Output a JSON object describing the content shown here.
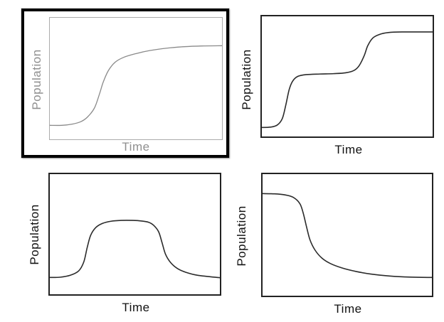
{
  "page": {
    "background": "#ffffff",
    "selected_frame_color": "#000000"
  },
  "chart_data": [
    {
      "id": "logistic-growth",
      "type": "line",
      "title": "",
      "xlabel": "Time",
      "ylabel": "Population",
      "selected": true,
      "grid": false,
      "ticks": false,
      "line_color": "#8a8a8a",
      "axis_color": "#ababab",
      "label_color": "#8f8f8f",
      "points": [
        [
          0,
          0.115
        ],
        [
          0.07,
          0.115
        ],
        [
          0.13,
          0.125
        ],
        [
          0.18,
          0.145
        ],
        [
          0.22,
          0.185
        ],
        [
          0.26,
          0.26
        ],
        [
          0.29,
          0.38
        ],
        [
          0.31,
          0.47
        ],
        [
          0.34,
          0.565
        ],
        [
          0.38,
          0.635
        ],
        [
          0.43,
          0.675
        ],
        [
          0.5,
          0.705
        ],
        [
          0.58,
          0.73
        ],
        [
          0.68,
          0.75
        ],
        [
          0.78,
          0.762
        ],
        [
          0.88,
          0.768
        ],
        [
          1,
          0.77
        ]
      ]
    },
    {
      "id": "stepwise-growth",
      "type": "line",
      "title": "",
      "xlabel": "Time",
      "ylabel": "Population",
      "selected": false,
      "grid": false,
      "ticks": false,
      "line_color": "#2b2b2b",
      "axis_color": "#222222",
      "label_color": "#111111",
      "points": [
        [
          0,
          0.075
        ],
        [
          0.05,
          0.078
        ],
        [
          0.09,
          0.095
        ],
        [
          0.12,
          0.15
        ],
        [
          0.14,
          0.26
        ],
        [
          0.16,
          0.39
        ],
        [
          0.18,
          0.46
        ],
        [
          0.21,
          0.5
        ],
        [
          0.26,
          0.515
        ],
        [
          0.34,
          0.52
        ],
        [
          0.42,
          0.523
        ],
        [
          0.49,
          0.53
        ],
        [
          0.54,
          0.55
        ],
        [
          0.57,
          0.59
        ],
        [
          0.6,
          0.675
        ],
        [
          0.62,
          0.755
        ],
        [
          0.65,
          0.82
        ],
        [
          0.69,
          0.85
        ],
        [
          0.74,
          0.865
        ],
        [
          0.82,
          0.87
        ],
        [
          1,
          0.87
        ]
      ]
    },
    {
      "id": "boom-and-bust",
      "type": "line",
      "title": "",
      "xlabel": "Time",
      "ylabel": "Population",
      "selected": false,
      "grid": false,
      "ticks": false,
      "line_color": "#2b2b2b",
      "axis_color": "#222222",
      "label_color": "#111111",
      "points": [
        [
          0,
          0.14
        ],
        [
          0.06,
          0.142
        ],
        [
          0.12,
          0.158
        ],
        [
          0.17,
          0.195
        ],
        [
          0.2,
          0.27
        ],
        [
          0.22,
          0.39
        ],
        [
          0.24,
          0.49
        ],
        [
          0.27,
          0.555
        ],
        [
          0.31,
          0.59
        ],
        [
          0.36,
          0.608
        ],
        [
          0.42,
          0.615
        ],
        [
          0.49,
          0.615
        ],
        [
          0.54,
          0.61
        ],
        [
          0.58,
          0.6
        ],
        [
          0.61,
          0.575
        ],
        [
          0.64,
          0.52
        ],
        [
          0.66,
          0.43
        ],
        [
          0.68,
          0.335
        ],
        [
          0.71,
          0.265
        ],
        [
          0.75,
          0.215
        ],
        [
          0.8,
          0.183
        ],
        [
          0.87,
          0.158
        ],
        [
          1,
          0.138
        ]
      ]
    },
    {
      "id": "population-decline",
      "type": "line",
      "title": "",
      "xlabel": "Time",
      "ylabel": "Population",
      "selected": false,
      "grid": false,
      "ticks": false,
      "line_color": "#2b2b2b",
      "axis_color": "#222222",
      "label_color": "#111111",
      "points": [
        [
          0,
          0.84
        ],
        [
          0.07,
          0.838
        ],
        [
          0.13,
          0.83
        ],
        [
          0.18,
          0.81
        ],
        [
          0.22,
          0.758
        ],
        [
          0.24,
          0.68
        ],
        [
          0.26,
          0.565
        ],
        [
          0.28,
          0.46
        ],
        [
          0.31,
          0.375
        ],
        [
          0.35,
          0.31
        ],
        [
          0.4,
          0.265
        ],
        [
          0.47,
          0.228
        ],
        [
          0.55,
          0.2
        ],
        [
          0.64,
          0.178
        ],
        [
          0.75,
          0.162
        ],
        [
          0.87,
          0.153
        ],
        [
          1,
          0.15
        ]
      ]
    }
  ]
}
